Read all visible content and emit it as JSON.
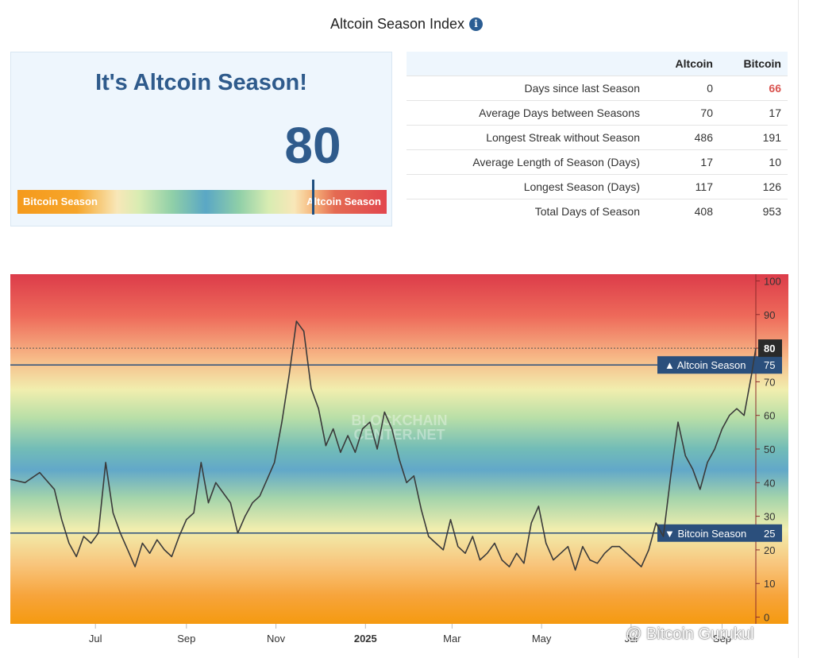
{
  "header": {
    "title": "Altcoin Season Index",
    "info_icon": "info-icon"
  },
  "season_card": {
    "headline": "It's Altcoin Season!",
    "value": "80",
    "gauge_left_label": "Bitcoin Season",
    "gauge_right_label": "Altcoin Season",
    "gauge_level": 80
  },
  "stats": {
    "columns": [
      "Altcoin",
      "Bitcoin"
    ],
    "rows": [
      {
        "label": "Days since last Season",
        "altcoin": "0",
        "bitcoin": "66"
      },
      {
        "label": "Average Days between Seasons",
        "altcoin": "70",
        "bitcoin": "17"
      },
      {
        "label": "Longest Streak without Season",
        "altcoin": "486",
        "bitcoin": "191"
      },
      {
        "label": "Average Length of Season (Days)",
        "altcoin": "17",
        "bitcoin": "10"
      },
      {
        "label": "Longest Season (Days)",
        "altcoin": "117",
        "bitcoin": "126"
      },
      {
        "label": "Total Days of Season",
        "altcoin": "408",
        "bitcoin": "953"
      }
    ],
    "highlight_color": "#d9534f"
  },
  "chart_data": {
    "type": "line",
    "ylim": [
      -2,
      102
    ],
    "y_ticks": [
      0,
      10,
      20,
      30,
      40,
      50,
      60,
      70,
      80,
      90,
      100
    ],
    "x_ticks": [
      "Jul",
      "Sep",
      "Nov",
      "2025",
      "Mar",
      "May",
      "Jul",
      "Sep"
    ],
    "x_tick_dates": [
      "2024-07-01",
      "2024-09-01",
      "2024-11-01",
      "2025-01-01",
      "2025-03-01",
      "2025-05-01",
      "2025-07-01",
      "2025-09-01"
    ],
    "x_range": [
      "2024-05-04",
      "2025-09-24"
    ],
    "thresholds": [
      {
        "label": "Altcoin Season",
        "value": 75,
        "marker": "▲"
      },
      {
        "label": "Bitcoin Season",
        "value": 25,
        "marker": "▼"
      }
    ],
    "current_value": 80,
    "series": [
      {
        "x": [
          "2024-05-04",
          "2024-05-14",
          "2024-05-24",
          "2024-06-03",
          "2024-06-08",
          "2024-06-13",
          "2024-06-18",
          "2024-06-23",
          "2024-06-28",
          "2024-07-03",
          "2024-07-08",
          "2024-07-13",
          "2024-07-18",
          "2024-07-23",
          "2024-07-28",
          "2024-08-02",
          "2024-08-07",
          "2024-08-12",
          "2024-08-17",
          "2024-08-22",
          "2024-08-27",
          "2024-09-01",
          "2024-09-06",
          "2024-09-11",
          "2024-09-16",
          "2024-09-21",
          "2024-09-26",
          "2024-10-01",
          "2024-10-06",
          "2024-10-11",
          "2024-10-16",
          "2024-10-21",
          "2024-10-26",
          "2024-10-31",
          "2024-11-05",
          "2024-11-10",
          "2024-11-15",
          "2024-11-20",
          "2024-11-25",
          "2024-11-30",
          "2024-12-05",
          "2024-12-10",
          "2024-12-15",
          "2024-12-20",
          "2024-12-25",
          "2024-12-30",
          "2025-01-04",
          "2025-01-09",
          "2025-01-14",
          "2025-01-19",
          "2025-01-24",
          "2025-01-29",
          "2025-02-03",
          "2025-02-08",
          "2025-02-13",
          "2025-02-18",
          "2025-02-23",
          "2025-02-28",
          "2025-03-05",
          "2025-03-10",
          "2025-03-15",
          "2025-03-20",
          "2025-03-25",
          "2025-03-30",
          "2025-04-04",
          "2025-04-09",
          "2025-04-14",
          "2025-04-19",
          "2025-04-24",
          "2025-04-29",
          "2025-05-04",
          "2025-05-09",
          "2025-05-14",
          "2025-05-19",
          "2025-05-24",
          "2025-05-29",
          "2025-06-03",
          "2025-06-08",
          "2025-06-13",
          "2025-06-18",
          "2025-06-23",
          "2025-06-28",
          "2025-07-03",
          "2025-07-08",
          "2025-07-13",
          "2025-07-18",
          "2025-07-23",
          "2025-07-28",
          "2025-08-02",
          "2025-08-07",
          "2025-08-12",
          "2025-08-17",
          "2025-08-22",
          "2025-08-27",
          "2025-09-01",
          "2025-09-06",
          "2025-09-11",
          "2025-09-16",
          "2025-09-21",
          "2025-09-24"
        ],
        "y": [
          41,
          40,
          43,
          38,
          29,
          22,
          18,
          24,
          22,
          25,
          46,
          31,
          25,
          20,
          15,
          22,
          19,
          23,
          20,
          18,
          24,
          29,
          31,
          46,
          34,
          40,
          37,
          34,
          25,
          30,
          34,
          36,
          41,
          46,
          58,
          72,
          88,
          85,
          68,
          62,
          51,
          56,
          49,
          54,
          49,
          56,
          58,
          50,
          61,
          56,
          47,
          40,
          42,
          32,
          24,
          22,
          20,
          29,
          21,
          19,
          24,
          17,
          19,
          22,
          17,
          15,
          19,
          16,
          28,
          33,
          22,
          17,
          19,
          21,
          14,
          21,
          17,
          16,
          19,
          21,
          21,
          19,
          17,
          15,
          20,
          28,
          24,
          42,
          58,
          48,
          44,
          38,
          46,
          50,
          56,
          60,
          62,
          60,
          72,
          80
        ]
      }
    ]
  },
  "watermark": {
    "line1": "BLOCKCHAIN",
    "line2": "CENTER.NET"
  },
  "credit": "@ Bitcoin Gurukul"
}
